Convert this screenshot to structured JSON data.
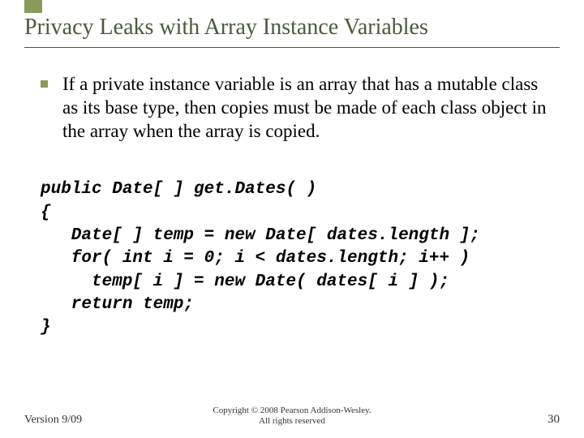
{
  "accent_color": "#8a9a5b",
  "title_color": "#4a5a3a",
  "title": "Privacy Leaks with Array Instance Variables",
  "paragraph": "If a private instance variable is an array that has a mutable class as its base type, then copies must be made of each class object in the array when the array is copied.",
  "code": {
    "l1": "public Date[ ] get.Dates( )",
    "l2": "{",
    "l3": "   Date[ ] temp = new Date[ dates.length ];",
    "l4": "   for( int i = 0; i < dates.length; i++ )",
    "l5": "     temp[ i ] = new Date( dates[ i ] );",
    "l6": "   return temp;",
    "l7": "}"
  },
  "footer": {
    "version": "Version 9/09",
    "copyright_line1": "Copyright © 2008 Pearson Addison-Wesley.",
    "copyright_line2": "All rights reserved",
    "page": "30"
  }
}
